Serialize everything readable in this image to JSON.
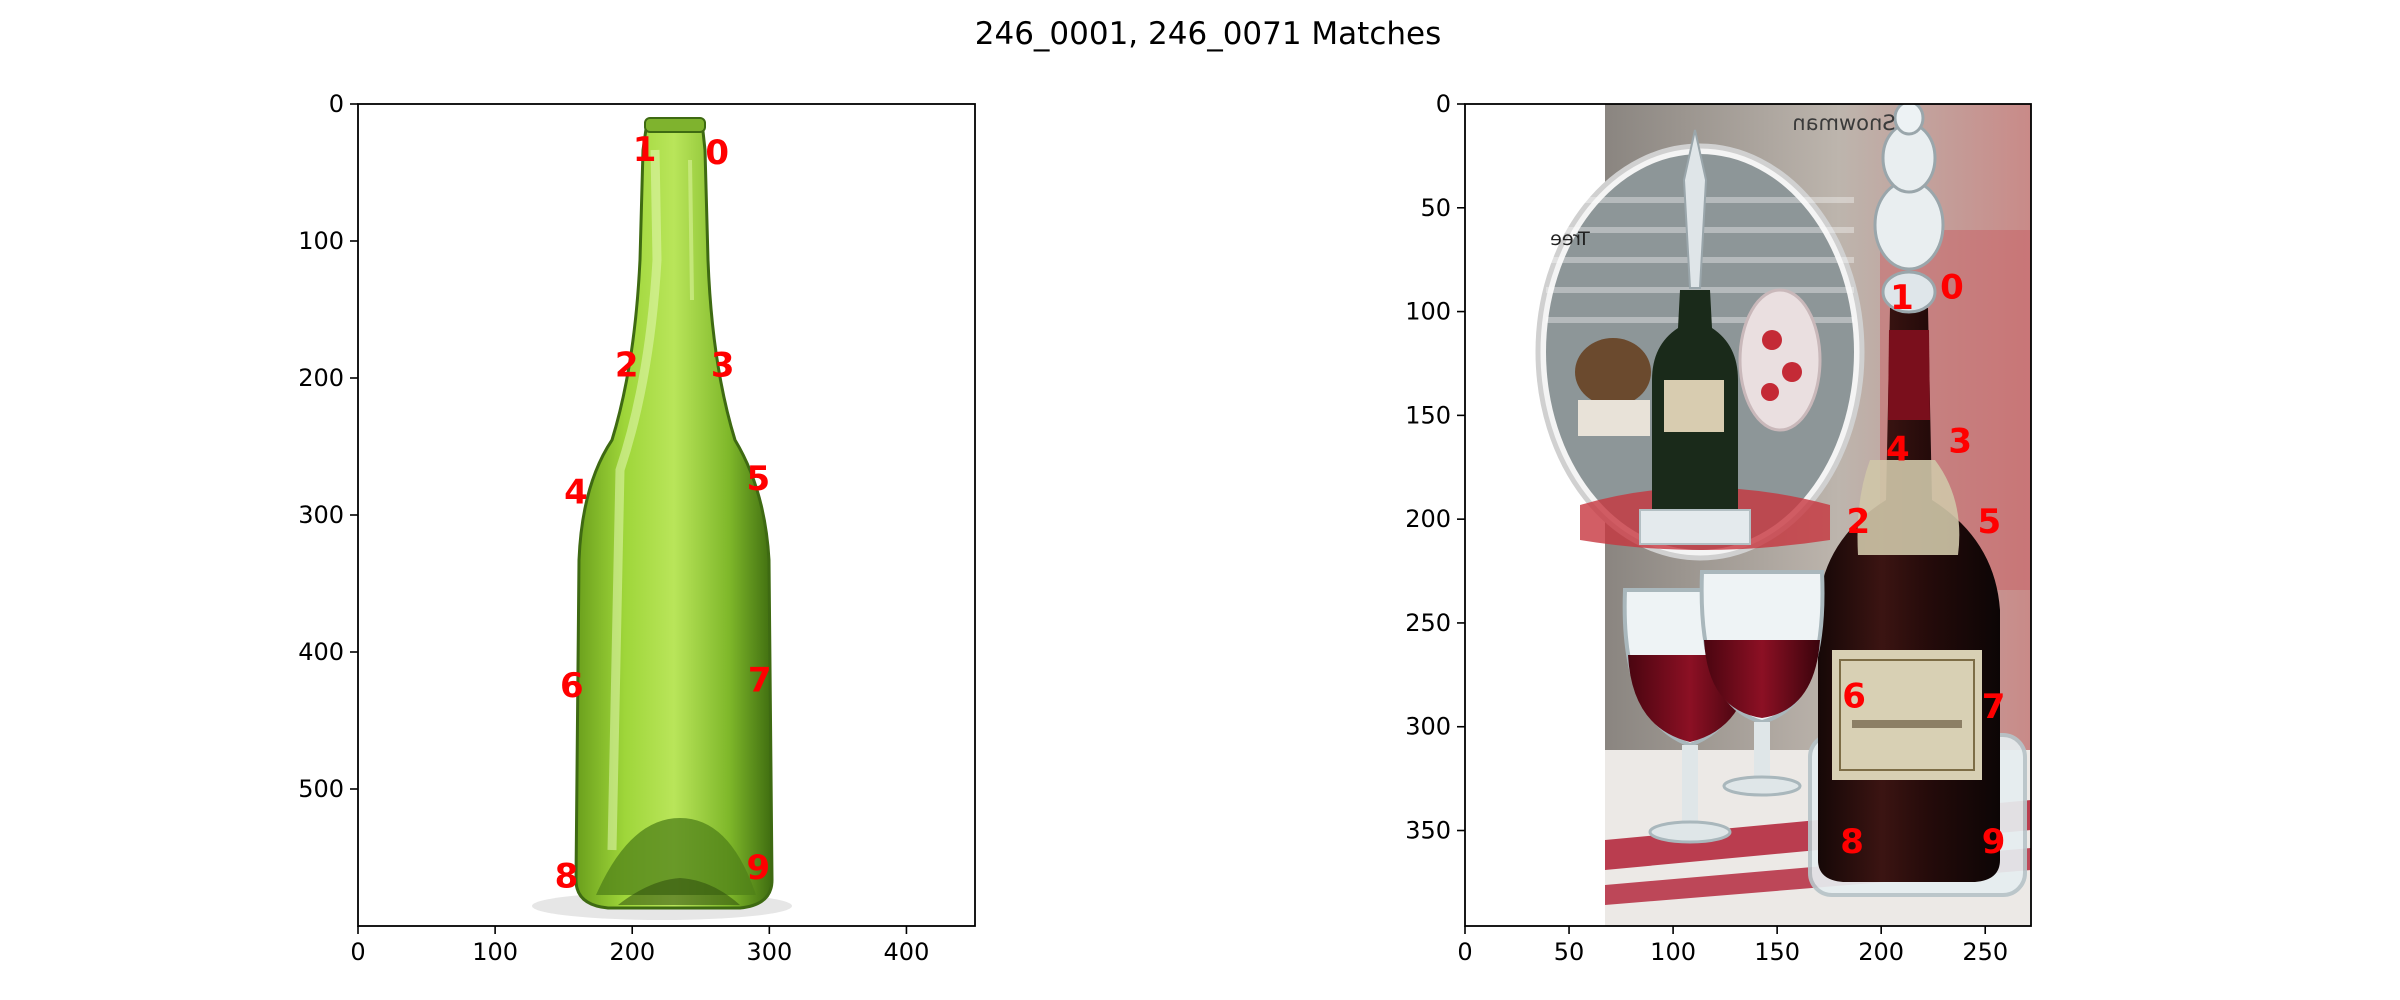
{
  "title": "246_0001, 246_0071 Matches",
  "chart_data": [
    {
      "type": "scatter",
      "image_subject": "green glass wine bottle on white background",
      "xlim": [
        0,
        450
      ],
      "ylim": [
        600,
        0
      ],
      "xticks": [
        0,
        100,
        200,
        300,
        400
      ],
      "yticks": [
        0,
        100,
        200,
        300,
        400,
        500
      ],
      "keypoints": [
        {
          "label": "0",
          "x": 262,
          "y": 35
        },
        {
          "label": "1",
          "x": 209,
          "y": 33
        },
        {
          "label": "2",
          "x": 196,
          "y": 190
        },
        {
          "label": "3",
          "x": 266,
          "y": 190
        },
        {
          "label": "4",
          "x": 159,
          "y": 283
        },
        {
          "label": "5",
          "x": 292,
          "y": 273
        },
        {
          "label": "6",
          "x": 156,
          "y": 424
        },
        {
          "label": "7",
          "x": 293,
          "y": 420
        },
        {
          "label": "8",
          "x": 152,
          "y": 563
        },
        {
          "label": "9",
          "x": 292,
          "y": 557
        }
      ]
    },
    {
      "type": "scatter",
      "image_subject": "wine bottle with glass stopper, two wine glasses, inset oval photo",
      "xlim": [
        0,
        272
      ],
      "ylim": [
        396,
        0
      ],
      "xticks": [
        0,
        50,
        100,
        150,
        200,
        250
      ],
      "yticks": [
        0,
        50,
        100,
        150,
        200,
        250,
        300,
        350
      ],
      "image_texts": [
        "Snowman",
        "Tree"
      ],
      "keypoints": [
        {
          "label": "0",
          "x": 234,
          "y": 88
        },
        {
          "label": "1",
          "x": 210,
          "y": 93
        },
        {
          "label": "2",
          "x": 189,
          "y": 201
        },
        {
          "label": "3",
          "x": 238,
          "y": 162
        },
        {
          "label": "4",
          "x": 208,
          "y": 166
        },
        {
          "label": "5",
          "x": 252,
          "y": 201
        },
        {
          "label": "6",
          "x": 187,
          "y": 285
        },
        {
          "label": "7",
          "x": 254,
          "y": 290
        },
        {
          "label": "8",
          "x": 186,
          "y": 355
        },
        {
          "label": "9",
          "x": 254,
          "y": 355
        }
      ]
    }
  ]
}
